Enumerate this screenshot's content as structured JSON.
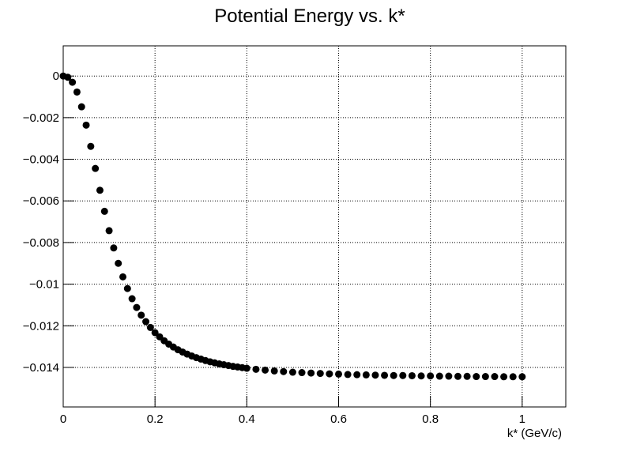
{
  "chart_data": {
    "type": "scatter",
    "title": "Potential Energy vs. k*",
    "x_label": "k* (GeV/c)",
    "color": "#000000",
    "grid": true,
    "x": [
      0,
      0.01,
      0.02,
      0.03,
      0.04,
      0.05,
      0.06,
      0.07,
      0.08,
      0.09,
      0.1,
      0.11,
      0.12,
      0.13,
      0.14,
      0.15,
      0.16,
      0.17,
      0.18,
      0.19,
      0.2,
      0.21,
      0.22,
      0.23,
      0.24,
      0.25,
      0.26,
      0.27,
      0.28,
      0.29,
      0.3,
      0.31,
      0.32,
      0.33,
      0.34,
      0.35,
      0.36,
      0.37,
      0.38,
      0.39,
      0.4,
      0.42,
      0.44,
      0.46,
      0.48,
      0.5,
      0.52,
      0.54,
      0.56,
      0.58,
      0.6,
      0.62,
      0.64,
      0.66,
      0.68,
      0.7,
      0.72,
      0.74,
      0.76,
      0.78,
      0.8,
      0.82,
      0.84,
      0.86,
      0.88,
      0.9,
      0.92,
      0.94,
      0.96,
      0.98,
      1.0
    ],
    "values": [
      0,
      -6e-05,
      -0.0003,
      -0.00077,
      -0.00148,
      -0.00236,
      -0.00338,
      -0.00444,
      -0.00549,
      -0.0065,
      -0.00743,
      -0.00826,
      -0.009,
      -0.00965,
      -0.01021,
      -0.0107,
      -0.01112,
      -0.01149,
      -0.0118,
      -0.01208,
      -0.01233,
      -0.01253,
      -0.01272,
      -0.01288,
      -0.01302,
      -0.01315,
      -0.01326,
      -0.01336,
      -0.01345,
      -0.01353,
      -0.0136,
      -0.01367,
      -0.01373,
      -0.01378,
      -0.01383,
      -0.01387,
      -0.01391,
      -0.01395,
      -0.01398,
      -0.01401,
      -0.01404,
      -0.01409,
      -0.01413,
      -0.01417,
      -0.0142,
      -0.01423,
      -0.01425,
      -0.01427,
      -0.01429,
      -0.01431,
      -0.01432,
      -0.01434,
      -0.01435,
      -0.01436,
      -0.01437,
      -0.01438,
      -0.01439,
      -0.01439,
      -0.0144,
      -0.01441,
      -0.01441,
      -0.01442,
      -0.01442,
      -0.01443,
      -0.01443,
      -0.01444,
      -0.01444,
      -0.01444,
      -0.01445,
      -0.01445,
      -0.01445
    ],
    "xlim": [
      0,
      1.095
    ],
    "xticks": [
      0,
      0.2,
      0.4,
      0.6,
      0.8,
      1
    ],
    "ylim": [
      -0.0159,
      0.00145
    ],
    "yticks": [
      0,
      {
        "value": -0.002,
        "label": "−0.002"
      },
      {
        "value": -0.004,
        "label": "−0.004"
      },
      {
        "value": -0.006,
        "label": "−0.006"
      },
      {
        "value": -0.008,
        "label": "−0.008"
      },
      {
        "value": -0.01,
        "label": "−0.01"
      },
      {
        "value": -0.012,
        "label": "−0.012"
      },
      {
        "value": -0.014,
        "label": "−0.014"
      }
    ]
  }
}
